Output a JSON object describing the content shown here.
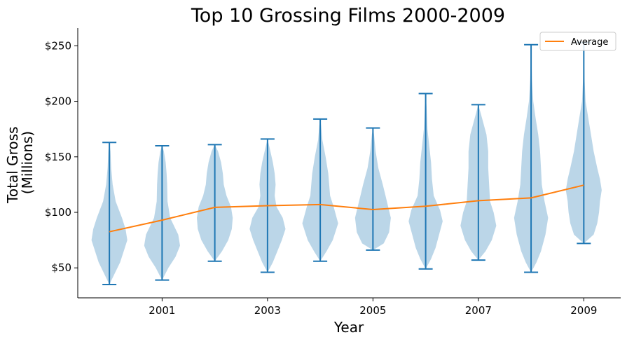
{
  "chart_data": {
    "type": "violin",
    "title": "Top 10 Grossing Films 2000-2009",
    "xlabel": "Year",
    "ylabel_lines": [
      "Total Gross",
      "(Millions)"
    ],
    "x_ticks": [
      2001,
      2003,
      2005,
      2007,
      2009
    ],
    "y_ticks": [
      {
        "value": 50,
        "label": "$50"
      },
      {
        "value": 100,
        "label": "$100"
      },
      {
        "value": 150,
        "label": "$150"
      },
      {
        "value": 200,
        "label": "$200"
      },
      {
        "value": 250,
        "label": "$250"
      }
    ],
    "xlim": [
      1999.4,
      2009.7
    ],
    "ylim": [
      23,
      266
    ],
    "legend": {
      "position": "top-right",
      "entries": [
        {
          "label": "Average",
          "color": "#ff7f0e"
        }
      ]
    },
    "colors": {
      "violin_fill": "#1f77b4",
      "violin_alpha": 0.3,
      "whisker": "#1f77b4",
      "average_line": "#ff7f0e"
    },
    "series": [
      {
        "name": "Average",
        "type": "line",
        "x": [
          2000,
          2001,
          2002,
          2003,
          2004,
          2005,
          2006,
          2007,
          2008,
          2009
        ],
        "values": [
          82.5,
          93,
          104.5,
          106,
          107,
          102.5,
          105.5,
          110.5,
          113,
          124.5
        ]
      }
    ],
    "violins": [
      {
        "year": 2000,
        "min": 35,
        "max": 163,
        "density": [
          [
            35,
            0
          ],
          [
            45,
            0.3
          ],
          [
            55,
            0.6
          ],
          [
            65,
            0.8
          ],
          [
            75,
            1.0
          ],
          [
            85,
            0.9
          ],
          [
            95,
            0.7
          ],
          [
            110,
            0.35
          ],
          [
            125,
            0.18
          ],
          [
            140,
            0.1
          ],
          [
            155,
            0.06
          ],
          [
            163,
            0
          ]
        ]
      },
      {
        "year": 2001,
        "min": 39,
        "max": 160,
        "density": [
          [
            39,
            0
          ],
          [
            50,
            0.35
          ],
          [
            60,
            0.75
          ],
          [
            70,
            1.0
          ],
          [
            80,
            0.9
          ],
          [
            95,
            0.45
          ],
          [
            110,
            0.3
          ],
          [
            125,
            0.28
          ],
          [
            135,
            0.25
          ],
          [
            145,
            0.2
          ],
          [
            155,
            0.1
          ],
          [
            160,
            0
          ]
        ]
      },
      {
        "year": 2002,
        "min": 56,
        "max": 161,
        "density": [
          [
            56,
            0
          ],
          [
            65,
            0.4
          ],
          [
            75,
            0.75
          ],
          [
            85,
            0.95
          ],
          [
            95,
            1.0
          ],
          [
            105,
            0.9
          ],
          [
            115,
            0.65
          ],
          [
            125,
            0.5
          ],
          [
            135,
            0.45
          ],
          [
            145,
            0.35
          ],
          [
            155,
            0.18
          ],
          [
            161,
            0
          ]
        ]
      },
      {
        "year": 2003,
        "min": 46,
        "max": 166,
        "density": [
          [
            46,
            0
          ],
          [
            55,
            0.3
          ],
          [
            65,
            0.55
          ],
          [
            75,
            0.8
          ],
          [
            85,
            1.0
          ],
          [
            95,
            0.85
          ],
          [
            105,
            0.5
          ],
          [
            115,
            0.4
          ],
          [
            125,
            0.45
          ],
          [
            135,
            0.4
          ],
          [
            145,
            0.3
          ],
          [
            158,
            0.12
          ],
          [
            166,
            0
          ]
        ]
      },
      {
        "year": 2004,
        "min": 56,
        "max": 184,
        "density": [
          [
            56,
            0
          ],
          [
            65,
            0.35
          ],
          [
            75,
            0.7
          ],
          [
            90,
            1.0
          ],
          [
            105,
            0.75
          ],
          [
            115,
            0.55
          ],
          [
            125,
            0.5
          ],
          [
            135,
            0.45
          ],
          [
            150,
            0.3
          ],
          [
            165,
            0.12
          ],
          [
            178,
            0.05
          ],
          [
            184,
            0
          ]
        ]
      },
      {
        "year": 2005,
        "min": 66,
        "max": 176,
        "density": [
          [
            66,
            0
          ],
          [
            72,
            0.6
          ],
          [
            82,
            0.9
          ],
          [
            95,
            1.0
          ],
          [
            105,
            0.85
          ],
          [
            115,
            0.7
          ],
          [
            125,
            0.55
          ],
          [
            140,
            0.3
          ],
          [
            155,
            0.15
          ],
          [
            170,
            0.06
          ],
          [
            176,
            0
          ]
        ]
      },
      {
        "year": 2006,
        "min": 49,
        "max": 207,
        "density": [
          [
            49,
            0
          ],
          [
            58,
            0.3
          ],
          [
            68,
            0.55
          ],
          [
            80,
            0.75
          ],
          [
            92,
            0.95
          ],
          [
            102,
            0.8
          ],
          [
            115,
            0.45
          ],
          [
            130,
            0.35
          ],
          [
            145,
            0.3
          ],
          [
            160,
            0.2
          ],
          [
            175,
            0.1
          ],
          [
            195,
            0.05
          ],
          [
            207,
            0
          ]
        ]
      },
      {
        "year": 2007,
        "min": 57,
        "max": 197,
        "density": [
          [
            57,
            0
          ],
          [
            65,
            0.4
          ],
          [
            75,
            0.75
          ],
          [
            88,
            1.0
          ],
          [
            100,
            0.85
          ],
          [
            110,
            0.65
          ],
          [
            125,
            0.6
          ],
          [
            140,
            0.55
          ],
          [
            155,
            0.55
          ],
          [
            170,
            0.45
          ],
          [
            185,
            0.2
          ],
          [
            197,
            0
          ]
        ]
      },
      {
        "year": 2008,
        "min": 46,
        "max": 251,
        "density": [
          [
            46,
            0
          ],
          [
            55,
            0.3
          ],
          [
            65,
            0.55
          ],
          [
            80,
            0.8
          ],
          [
            95,
            0.95
          ],
          [
            110,
            0.75
          ],
          [
            125,
            0.6
          ],
          [
            140,
            0.55
          ],
          [
            155,
            0.5
          ],
          [
            170,
            0.4
          ],
          [
            185,
            0.25
          ],
          [
            200,
            0.12
          ],
          [
            220,
            0.05
          ],
          [
            251,
            0
          ]
        ]
      },
      {
        "year": 2009,
        "min": 72,
        "max": 253,
        "density": [
          [
            72,
            0
          ],
          [
            80,
            0.55
          ],
          [
            90,
            0.75
          ],
          [
            100,
            0.85
          ],
          [
            110,
            0.9
          ],
          [
            120,
            1.0
          ],
          [
            130,
            0.9
          ],
          [
            140,
            0.75
          ],
          [
            155,
            0.55
          ],
          [
            170,
            0.4
          ],
          [
            185,
            0.25
          ],
          [
            200,
            0.1
          ],
          [
            220,
            0.04
          ],
          [
            253,
            0
          ]
        ]
      }
    ]
  }
}
